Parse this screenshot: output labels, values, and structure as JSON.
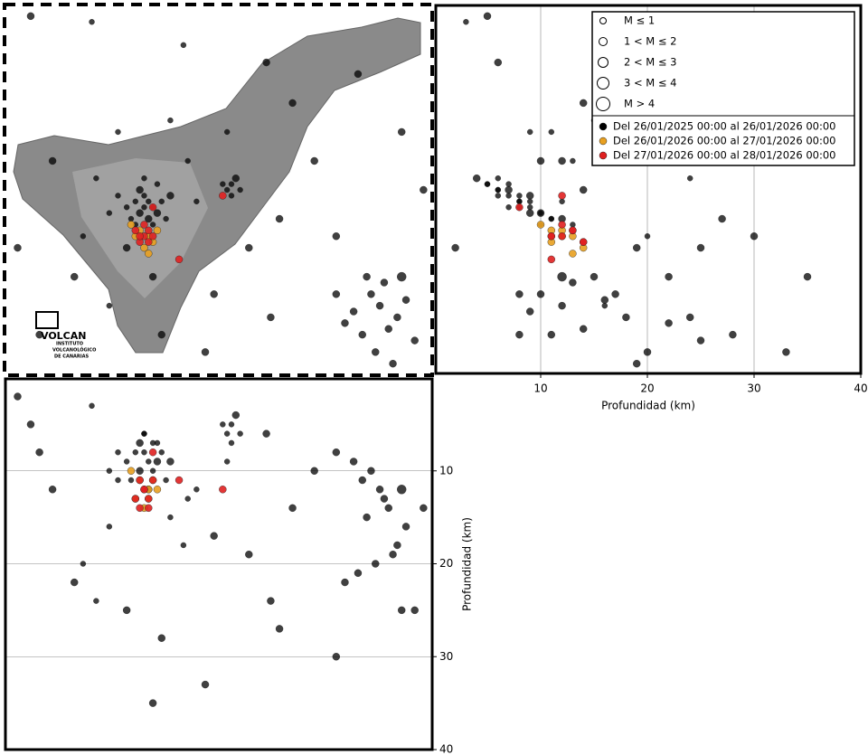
{
  "map": {
    "lonlim": [
      -16.96,
      -15.98
    ],
    "latlim": [
      27.98,
      28.62
    ],
    "logo": {
      "mark": "VOLCAN",
      "lines": [
        "INSTITUTO",
        "VOLCANOLÓGICO",
        "DE CANARIAS"
      ]
    }
  },
  "depth_axis": {
    "label": "Profundidad (km)",
    "lim": [
      0,
      40
    ],
    "ticks": [
      10,
      20,
      30,
      40
    ],
    "grid": true
  },
  "legend": {
    "magnitudes": [
      "M ≤ 1",
      "1 < M ≤ 2",
      "2 < M ≤ 3",
      "3 < M ≤ 4",
      "M > 4"
    ],
    "periods": [
      {
        "label": "Del 26/01/2025 00:00 al 26/01/2026 00:00",
        "color": "#000000"
      },
      {
        "label": "Del 26/01/2026 00:00 al 27/01/2026 00:00",
        "color": "#e8a020"
      },
      {
        "label": "Del 27/01/2026 00:00 al 28/01/2026 00:00",
        "color": "#e02020"
      }
    ]
  },
  "events": [
    [
      -16.64,
      28.27,
      8,
      1,
      0
    ],
    [
      -16.63,
      28.28,
      9,
      1,
      0
    ],
    [
      -16.65,
      28.26,
      10,
      2,
      0
    ],
    [
      -16.62,
      28.27,
      7,
      1,
      0
    ],
    [
      -16.66,
      28.28,
      8,
      1,
      0
    ],
    [
      -16.64,
      28.29,
      6,
      1,
      0
    ],
    [
      -16.61,
      28.26,
      9,
      2,
      0
    ],
    [
      -16.67,
      28.25,
      11,
      1,
      0
    ],
    [
      -16.63,
      28.25,
      12,
      2,
      0
    ],
    [
      -16.6,
      28.28,
      8,
      1,
      0
    ],
    [
      -16.68,
      28.27,
      9,
      1,
      0
    ],
    [
      -16.65,
      28.3,
      7,
      2,
      0
    ],
    [
      -16.62,
      28.24,
      10,
      1,
      0
    ],
    [
      -16.59,
      28.25,
      11,
      1,
      0
    ],
    [
      -16.66,
      28.24,
      13,
      1,
      0
    ],
    [
      -16.7,
      28.29,
      8,
      1,
      0
    ],
    [
      -16.58,
      28.29,
      9,
      2,
      0
    ],
    [
      -16.64,
      28.32,
      6,
      1,
      0
    ],
    [
      -16.72,
      28.26,
      10,
      1,
      0
    ],
    [
      -16.61,
      28.31,
      7,
      1,
      0
    ],
    [
      -16.44,
      28.31,
      5,
      1,
      0
    ],
    [
      -16.45,
      28.3,
      6,
      1,
      0
    ],
    [
      -16.43,
      28.32,
      4,
      2,
      0
    ],
    [
      -16.46,
      28.31,
      5,
      1,
      0
    ],
    [
      -16.44,
      28.29,
      7,
      1,
      0
    ],
    [
      -16.42,
      28.3,
      6,
      1,
      0
    ],
    [
      -16.1,
      28.1,
      12,
      2,
      0
    ],
    [
      -16.08,
      28.06,
      14,
      2,
      0
    ],
    [
      -16.12,
      28.12,
      10,
      2,
      0
    ],
    [
      -16.06,
      28.08,
      18,
      2,
      0
    ],
    [
      -16.14,
      28.05,
      11,
      2,
      0
    ],
    [
      -16.09,
      28.14,
      13,
      2,
      0
    ],
    [
      -16.04,
      28.11,
      16,
      2,
      0
    ],
    [
      -16.11,
      28.02,
      20,
      2,
      0
    ],
    [
      -16.16,
      28.09,
      9,
      2,
      0
    ],
    [
      -16.05,
      28.15,
      12,
      3,
      0
    ],
    [
      -16.13,
      28.15,
      15,
      2,
      0
    ],
    [
      -16.07,
      28.0,
      19,
      2,
      0
    ],
    [
      -16.18,
      28.07,
      22,
      2,
      0
    ],
    [
      -16.2,
      28.12,
      8,
      2,
      0
    ],
    [
      -16.02,
      28.04,
      25,
      2,
      0
    ],
    [
      -16.9,
      28.6,
      5,
      2,
      0
    ],
    [
      -16.76,
      28.59,
      3,
      1,
      0
    ],
    [
      -16.55,
      28.55,
      18,
      1,
      0
    ],
    [
      -16.3,
      28.45,
      14,
      2,
      0
    ],
    [
      -16.05,
      28.4,
      25,
      2,
      0
    ],
    [
      -16.85,
      28.35,
      12,
      2,
      0
    ],
    [
      -16.93,
      28.2,
      2,
      2,
      0
    ],
    [
      -16.8,
      28.15,
      22,
      2,
      0
    ],
    [
      -16.72,
      28.1,
      16,
      1,
      0
    ],
    [
      -16.6,
      28.05,
      28,
      2,
      0
    ],
    [
      -16.5,
      28.02,
      33,
      2,
      0
    ],
    [
      -16.4,
      28.2,
      19,
      2,
      0
    ],
    [
      -16.33,
      28.25,
      27,
      2,
      0
    ],
    [
      -16.25,
      28.35,
      10,
      2,
      0
    ],
    [
      -16.2,
      28.22,
      30,
      2,
      0
    ],
    [
      -16.35,
      28.08,
      24,
      2,
      0
    ],
    [
      -16.48,
      28.12,
      17,
      2,
      0
    ],
    [
      -16.7,
      28.4,
      11,
      1,
      0
    ],
    [
      -16.58,
      28.42,
      15,
      1,
      0
    ],
    [
      -16.78,
      28.22,
      20,
      1,
      0
    ],
    [
      -16.52,
      28.28,
      12,
      1,
      0
    ],
    [
      -16.68,
      28.2,
      25,
      2,
      0
    ],
    [
      -16.62,
      28.15,
      35,
      2,
      0
    ],
    [
      -16.0,
      28.3,
      14,
      2,
      0
    ],
    [
      -16.15,
      28.5,
      21,
      2,
      0
    ],
    [
      -16.88,
      28.05,
      8,
      2,
      0
    ],
    [
      -16.36,
      28.52,
      6,
      2,
      0
    ],
    [
      -16.45,
      28.4,
      9,
      1,
      0
    ],
    [
      -16.54,
      28.35,
      13,
      1,
      0
    ],
    [
      -16.75,
      28.32,
      24,
      1,
      0
    ],
    [
      -16.65,
      28.23,
      11,
      2,
      1
    ],
    [
      -16.63,
      28.22,
      12,
      2,
      1
    ],
    [
      -16.66,
      28.22,
      13,
      2,
      1
    ],
    [
      -16.62,
      28.21,
      11,
      2,
      1
    ],
    [
      -16.64,
      28.2,
      14,
      2,
      1
    ],
    [
      -16.67,
      28.24,
      10,
      2,
      1
    ],
    [
      -16.61,
      28.23,
      12,
      2,
      1
    ],
    [
      -16.63,
      28.19,
      13,
      2,
      1
    ],
    [
      -16.64,
      28.22,
      12,
      2,
      2
    ],
    [
      -16.63,
      28.23,
      13,
      2,
      2
    ],
    [
      -16.65,
      28.21,
      14,
      2,
      2
    ],
    [
      -16.62,
      28.22,
      11,
      2,
      2
    ],
    [
      -16.64,
      28.24,
      12,
      2,
      2
    ],
    [
      -16.66,
      28.23,
      13,
      2,
      2
    ],
    [
      -16.63,
      28.21,
      14,
      2,
      2
    ],
    [
      -16.65,
      28.22,
      11,
      2,
      2
    ],
    [
      -16.56,
      28.18,
      11,
      2,
      2
    ],
    [
      -16.46,
      28.29,
      12,
      2,
      2
    ],
    [
      -16.62,
      28.27,
      8,
      2,
      2
    ]
  ]
}
